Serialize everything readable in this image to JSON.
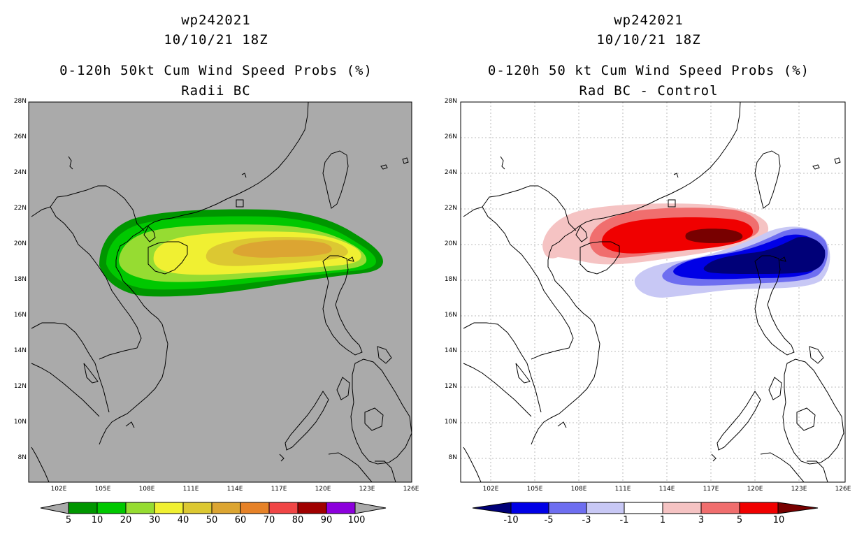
{
  "left": {
    "title1": "wp242021",
    "title2": "10/10/21 18Z",
    "title3": "0-120h 50kt Cum Wind Speed Probs (%)",
    "title4": "Radii BC",
    "lat_labels": [
      "28N",
      "26N",
      "24N",
      "22N",
      "20N",
      "18N",
      "16N",
      "14N",
      "12N",
      "10N",
      "8N"
    ],
    "lon_labels": [
      "102E",
      "105E",
      "108E",
      "111E",
      "114E",
      "117E",
      "120E",
      "123E",
      "126E"
    ],
    "colorbar": {
      "labels": [
        "5",
        "10",
        "20",
        "30",
        "40",
        "50",
        "60",
        "70",
        "80",
        "90",
        "100"
      ],
      "colors": [
        "#009600",
        "#00c800",
        "#96dc32",
        "#f0f032",
        "#dcc832",
        "#dca532",
        "#e68228",
        "#f04646",
        "#a00000",
        "#8c00dc"
      ]
    }
  },
  "right": {
    "title1": "wp242021",
    "title2": "10/10/21 18Z",
    "title3": "0-120h 50 kt Cum Wind Speed Probs (%)",
    "title4": "Rad BC - Control",
    "lat_labels": [
      "28N",
      "26N",
      "24N",
      "22N",
      "20N",
      "18N",
      "16N",
      "14N",
      "12N",
      "10N",
      "8N"
    ],
    "lon_labels": [
      "102E",
      "105E",
      "108E",
      "111E",
      "114E",
      "117E",
      "120E",
      "123E",
      "126E"
    ],
    "colorbar": {
      "labels": [
        "-10",
        "-5",
        "-3",
        "-1",
        "1",
        "3",
        "5",
        "10"
      ],
      "colors": [
        "#000078",
        "#0000e6",
        "#6e6ef0",
        "#c8c8f5",
        "#ffffff",
        "#f5c3c3",
        "#f06e6e",
        "#f00000",
        "#780000"
      ]
    }
  }
}
